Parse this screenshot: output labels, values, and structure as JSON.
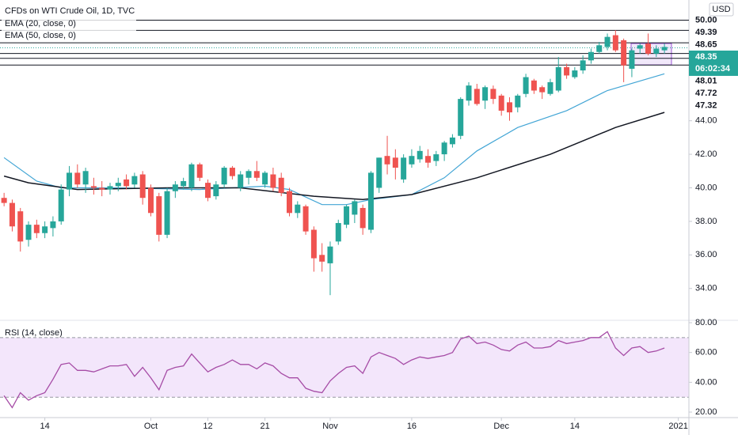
{
  "chart_data": {
    "type": "candlestick",
    "title": "CFDs on WTI Crude Oil, 1D, TVC",
    "currency": "USD",
    "up_color": "#26a69a",
    "down_color": "#ef5350",
    "xlim": [
      -0.5,
      84
    ],
    "ylim": [
      32.1,
      51.2
    ],
    "xticks": [
      {
        "value": 5,
        "label": "14"
      },
      {
        "value": 18,
        "label": "Oct"
      },
      {
        "value": 25,
        "label": "12"
      },
      {
        "value": 32,
        "label": "21"
      },
      {
        "value": 40,
        "label": "Nov"
      },
      {
        "value": 50,
        "label": "16"
      },
      {
        "value": 61,
        "label": "Dec"
      },
      {
        "value": 70,
        "label": "14"
      },
      {
        "value": 82.7,
        "label": "2021"
      }
    ],
    "yticks": [
      {
        "value": 34,
        "label": "34.00"
      },
      {
        "value": 36,
        "label": "36.00"
      },
      {
        "value": 38,
        "label": "38.00"
      },
      {
        "value": 40,
        "label": "40.00"
      },
      {
        "value": 42,
        "label": "42.00"
      },
      {
        "value": 44,
        "label": "44.00"
      }
    ],
    "levels": [
      {
        "value": 50,
        "label": "50.00"
      },
      {
        "value": 49.39,
        "label": "49.39"
      },
      {
        "value": 48.65,
        "label": "48.65"
      },
      {
        "value": 48.01,
        "label": "48.01"
      },
      {
        "value": 47.72,
        "label": "47.72"
      },
      {
        "value": 47.32,
        "label": "47.32"
      }
    ],
    "last_price": {
      "value": 48.35,
      "label": "48.35"
    },
    "countdown": "06:02:34",
    "ohlc": [
      [
        39.4,
        39.7,
        38.9,
        39.1
      ],
      [
        39.1,
        39.3,
        37.4,
        37.7
      ],
      [
        38.6,
        38.8,
        36.2,
        36.8
      ],
      [
        36.9,
        38.0,
        36.5,
        37.8
      ],
      [
        37.8,
        38.1,
        37.0,
        37.3
      ],
      [
        37.3,
        38.0,
        37.0,
        37.7
      ],
      [
        37.6,
        38.3,
        37.1,
        38.0
      ],
      [
        38.0,
        40.2,
        37.8,
        39.9
      ],
      [
        39.9,
        41.3,
        39.5,
        40.9
      ],
      [
        40.9,
        41.4,
        40.0,
        40.2
      ],
      [
        40.2,
        41.2,
        39.7,
        41.0
      ],
      [
        40.1,
        40.6,
        39.6,
        40.0
      ],
      [
        40.0,
        40.4,
        39.5,
        39.9
      ],
      [
        39.9,
        40.3,
        39.6,
        40.1
      ],
      [
        40.1,
        40.6,
        39.8,
        40.3
      ],
      [
        40.5,
        40.8,
        39.9,
        40.1
      ],
      [
        40.2,
        40.9,
        40.0,
        40.7
      ],
      [
        40.8,
        41.0,
        39.0,
        39.4
      ],
      [
        40.0,
        40.2,
        38.3,
        38.5
      ],
      [
        39.5,
        39.7,
        36.8,
        37.2
      ],
      [
        37.2,
        40.0,
        37.0,
        39.8
      ],
      [
        39.8,
        40.4,
        39.4,
        40.2
      ],
      [
        40.1,
        40.6,
        39.9,
        40.4
      ],
      [
        40.0,
        41.5,
        39.8,
        41.4
      ],
      [
        41.4,
        41.5,
        40.4,
        40.6
      ],
      [
        40.3,
        40.5,
        39.2,
        39.4
      ],
      [
        39.5,
        40.4,
        39.3,
        40.2
      ],
      [
        40.2,
        41.3,
        40.0,
        41.2
      ],
      [
        41.2,
        41.3,
        40.5,
        40.7
      ],
      [
        40.0,
        41.0,
        39.8,
        40.8
      ],
      [
        40.6,
        41.1,
        40.2,
        41.0
      ],
      [
        41.0,
        41.6,
        40.4,
        40.6
      ],
      [
        40.2,
        41.0,
        40.0,
        40.9
      ],
      [
        40.8,
        41.2,
        39.8,
        40.0
      ],
      [
        40.6,
        40.9,
        39.5,
        39.7
      ],
      [
        39.8,
        40.0,
        38.3,
        38.5
      ],
      [
        38.5,
        39.2,
        38.2,
        39.0
      ],
      [
        38.9,
        39.0,
        37.2,
        37.4
      ],
      [
        37.5,
        37.7,
        35.0,
        35.8
      ],
      [
        36.0,
        36.7,
        35.0,
        35.6
      ],
      [
        35.5,
        36.8,
        33.6,
        36.5
      ],
      [
        36.8,
        38.1,
        36.6,
        37.9
      ],
      [
        37.8,
        39.0,
        37.6,
        38.9
      ],
      [
        38.4,
        39.3,
        37.9,
        39.2
      ],
      [
        38.8,
        39.0,
        37.2,
        37.6
      ],
      [
        37.5,
        41.0,
        37.3,
        40.9
      ],
      [
        40.0,
        41.8,
        39.7,
        41.8
      ],
      [
        41.9,
        43.1,
        40.8,
        41.4
      ],
      [
        41.8,
        42.3,
        40.5,
        41.2
      ],
      [
        40.5,
        42.0,
        40.3,
        41.8
      ],
      [
        41.4,
        42.3,
        41.2,
        41.9
      ],
      [
        41.7,
        42.5,
        41.5,
        42.2
      ],
      [
        41.9,
        42.3,
        41.2,
        41.5
      ],
      [
        41.6,
        42.2,
        41.3,
        42.0
      ],
      [
        42.0,
        42.8,
        41.6,
        42.7
      ],
      [
        42.6,
        43.2,
        42.4,
        43.0
      ],
      [
        43.1,
        45.4,
        42.9,
        45.3
      ],
      [
        45.2,
        46.3,
        44.9,
        46.1
      ],
      [
        45.9,
        46.2,
        44.9,
        45.0
      ],
      [
        45.2,
        46.1,
        44.7,
        46.0
      ],
      [
        45.9,
        46.1,
        45.0,
        45.3
      ],
      [
        45.5,
        45.6,
        44.3,
        44.6
      ],
      [
        45.1,
        45.4,
        44.0,
        44.5
      ],
      [
        44.8,
        45.6,
        44.5,
        45.5
      ],
      [
        45.6,
        46.8,
        45.4,
        46.6
      ],
      [
        46.4,
        46.5,
        45.6,
        45.8
      ],
      [
        46.0,
        46.1,
        45.3,
        45.7
      ],
      [
        45.6,
        46.5,
        45.5,
        46.3
      ],
      [
        45.8,
        47.8,
        45.7,
        47.2
      ],
      [
        47.2,
        47.4,
        46.5,
        46.7
      ],
      [
        46.6,
        47.2,
        46.5,
        47.0
      ],
      [
        47.0,
        47.9,
        46.8,
        47.6
      ],
      [
        47.6,
        48.3,
        47.4,
        48.1
      ],
      [
        48.1,
        48.7,
        48.0,
        48.5
      ],
      [
        48.4,
        49.2,
        48.2,
        49.0
      ],
      [
        49.1,
        49.4,
        48.1,
        48.2
      ],
      [
        48.8,
        48.9,
        46.3,
        47.3
      ],
      [
        47.1,
        48.3,
        46.6,
        48.2
      ],
      [
        48.3,
        48.6,
        48.0,
        48.5
      ],
      [
        48.6,
        49.2,
        47.9,
        48.0
      ],
      [
        48.0,
        48.5,
        47.8,
        48.3
      ],
      [
        48.2,
        48.6,
        48.0,
        48.4
      ]
    ],
    "series": [
      {
        "name": "EMA (20, close, 0)",
        "color": "#42a5d5",
        "x": [
          0,
          4,
          7,
          14,
          24,
          32,
          35,
          39,
          42,
          45,
          50,
          54,
          58,
          63,
          69,
          74,
          81
        ],
        "values": [
          41.8,
          40.4,
          40.0,
          40.0,
          39.9,
          40.1,
          39.9,
          39.0,
          39.0,
          39.3,
          39.6,
          40.6,
          42.2,
          43.6,
          44.6,
          45.8,
          46.8
        ]
      },
      {
        "name": "EMA (50, close, 0)",
        "color": "#131722",
        "x": [
          0,
          3,
          9,
          20,
          29,
          38,
          44,
          50,
          58,
          67,
          75,
          81
        ],
        "values": [
          40.7,
          40.3,
          39.9,
          40.0,
          40.0,
          39.5,
          39.3,
          39.6,
          40.6,
          42.0,
          43.6,
          44.5
        ]
      }
    ],
    "rsi": {
      "name": "RSI (14, close)",
      "color": "#a64ca6",
      "band_color": "#f3e6fb",
      "ylim": [
        16.3,
        81.6
      ],
      "band": [
        30,
        70
      ],
      "yticks": [
        {
          "value": 20,
          "label": "20.00"
        },
        {
          "value": 40,
          "label": "40.00"
        },
        {
          "value": 60,
          "label": "60.00"
        },
        {
          "value": 80,
          "label": "80.00"
        }
      ],
      "values": [
        31,
        23,
        33,
        28,
        31,
        33,
        42,
        52,
        53,
        48,
        48,
        47,
        49,
        51,
        51,
        52,
        44,
        50,
        43,
        35,
        48,
        50,
        51,
        59,
        53,
        47,
        50,
        52,
        55,
        52,
        52,
        49,
        53,
        51,
        46,
        43,
        43,
        36,
        34,
        33,
        41,
        46,
        50,
        51,
        46,
        57,
        60,
        58,
        56,
        52,
        55,
        57,
        56,
        57,
        58,
        60,
        69,
        71,
        66,
        67,
        65,
        62,
        61,
        65,
        67,
        63,
        63,
        64,
        68,
        66,
        67,
        68,
        70,
        70,
        74,
        63,
        58,
        63,
        64,
        60,
        61,
        63
      ]
    }
  }
}
